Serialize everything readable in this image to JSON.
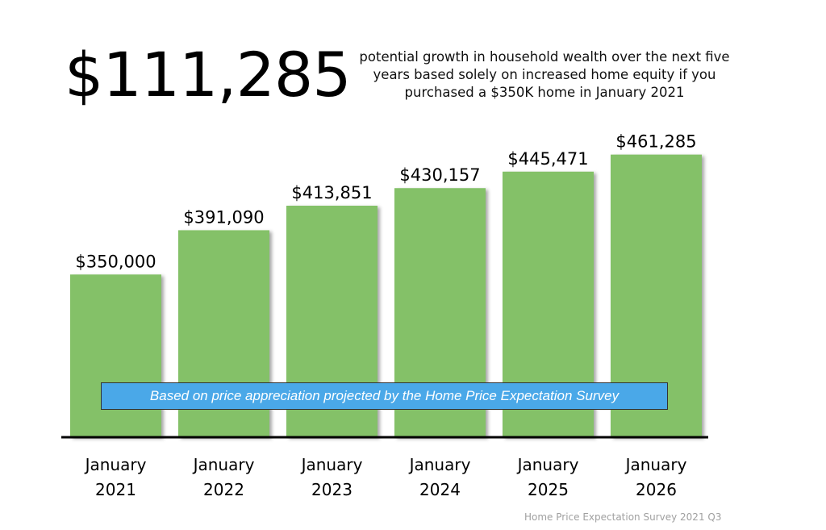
{
  "headline": {
    "amount": "$111,285",
    "description": "potential growth in household wealth over the next five years based solely on increased home equity if you purchased a $350K home in January 2021"
  },
  "note": "Based on price appreciation projected by the Home Price Expectation Survey",
  "source": "Home Price Expectation Survey 2021 Q3",
  "chart_data": {
    "type": "bar",
    "title": "",
    "xlabel": "",
    "ylabel": "",
    "categories": [
      [
        "January",
        "2021"
      ],
      [
        "January",
        "2022"
      ],
      [
        "January",
        "2023"
      ],
      [
        "January",
        "2024"
      ],
      [
        "January",
        "2025"
      ],
      [
        "January",
        "2026"
      ]
    ],
    "values": [
      350000,
      391090,
      413851,
      430157,
      445471,
      461285
    ],
    "data_labels": [
      "$350,000",
      "$391,090",
      "$413,851",
      "$430,157",
      "$445,471",
      "$461,285"
    ],
    "ylim": [
      199000,
      470000
    ],
    "grid": false,
    "bar_color": "#84c168",
    "note_color": "#4aa8e8"
  }
}
